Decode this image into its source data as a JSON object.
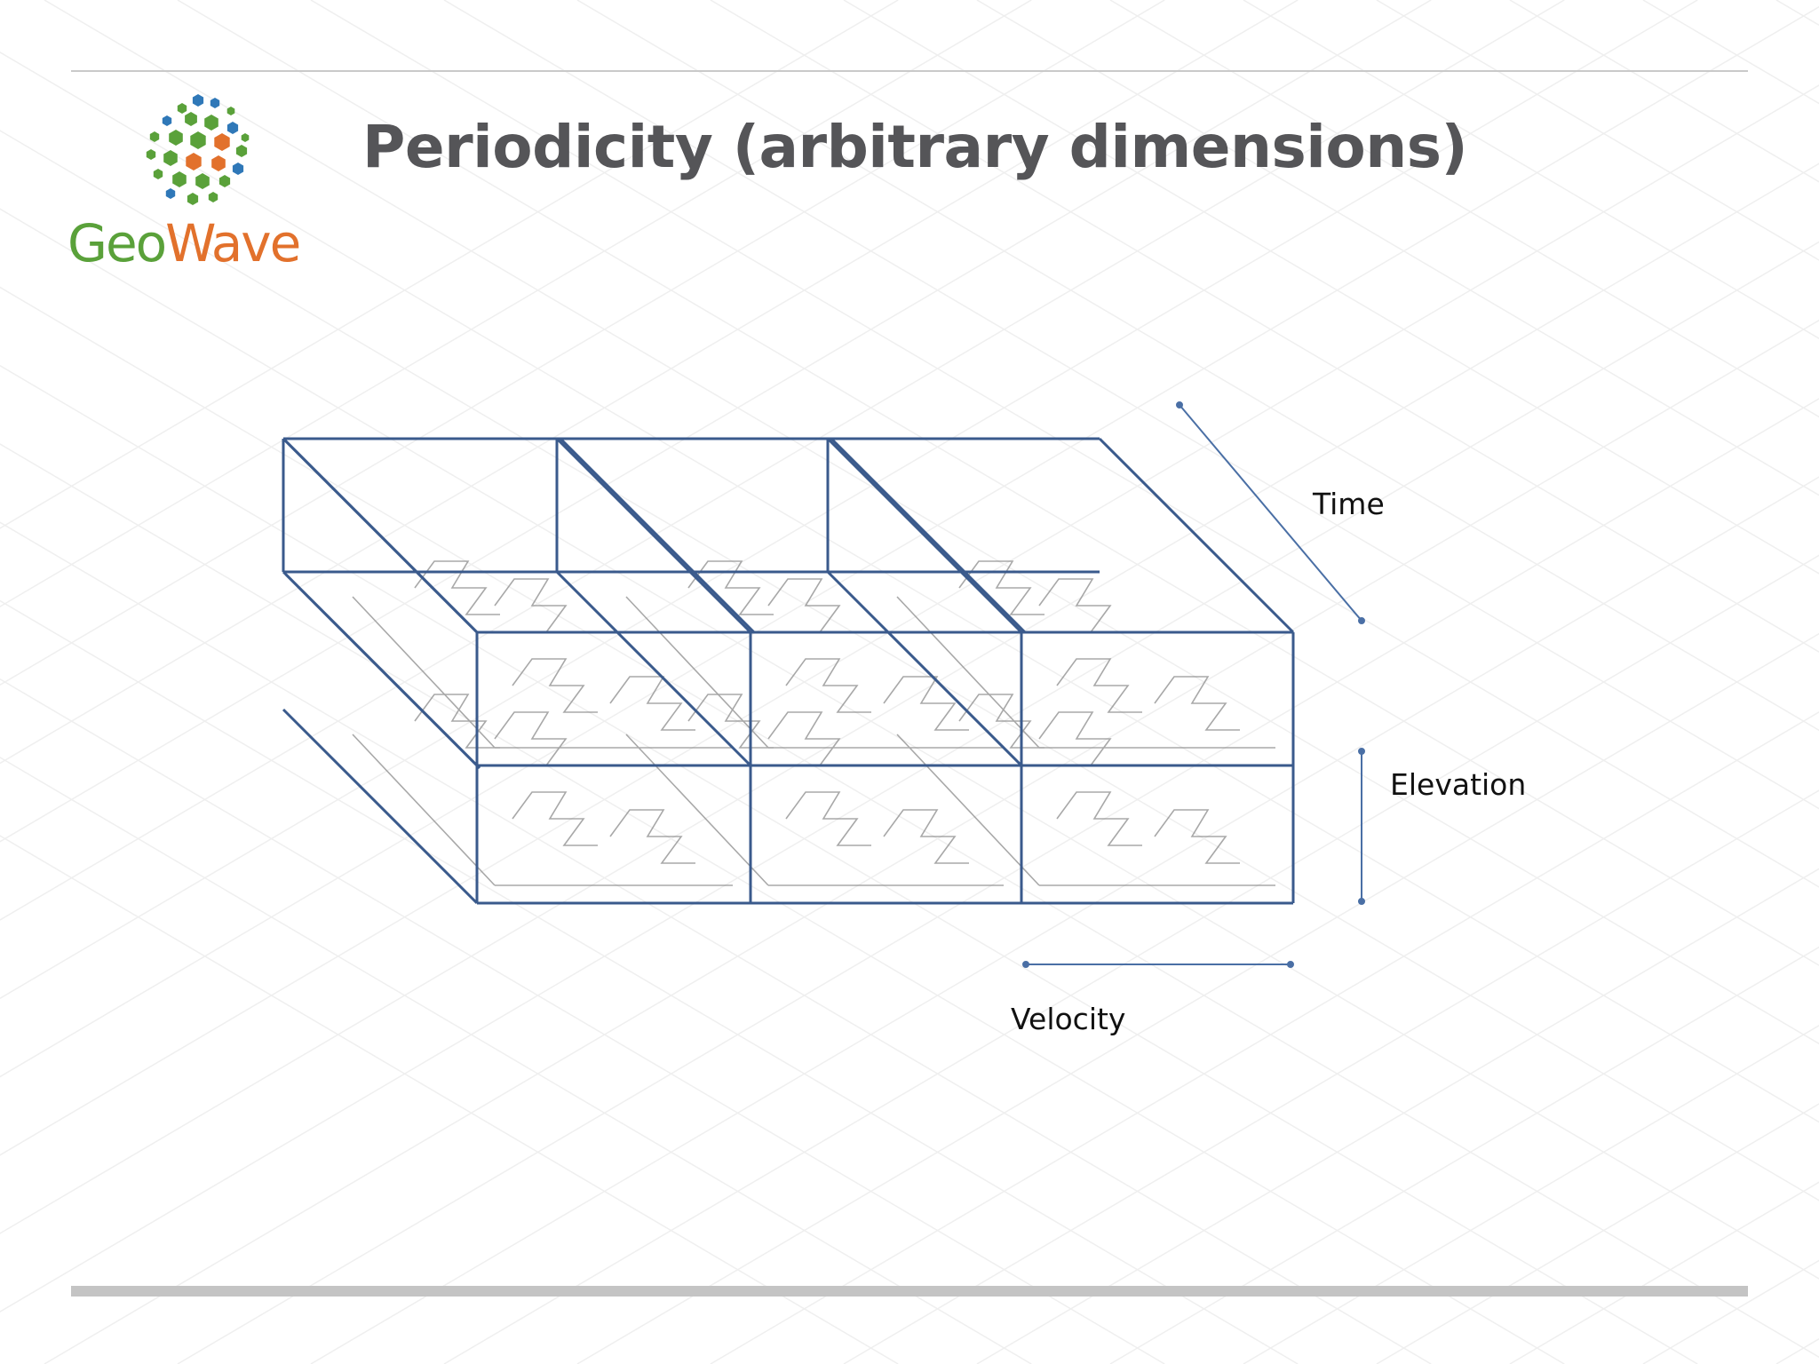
{
  "header": {
    "title": "Periodicity (arbitrary dimensions)"
  },
  "logo": {
    "text_part1": "Geo",
    "text_part2": "Wave"
  },
  "axes": {
    "time": "Time",
    "elevation": "Elevation",
    "velocity": "Velocity"
  },
  "colors": {
    "cell_stroke": "#3a5a8c",
    "axis_line": "#4a6fa5",
    "title": "#555558",
    "logo_green": "#5aa13a",
    "logo_orange": "#e2712c",
    "logo_blue": "#2f78b8"
  }
}
